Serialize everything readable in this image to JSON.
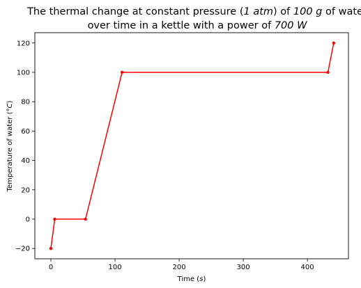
{
  "chart_data": {
    "type": "line",
    "title": {
      "line1_pre": "The thermal change at constant pressure (",
      "line1_math1": "1 atm",
      "line1_mid": ") of ",
      "line1_math2": "100 g",
      "line1_post": " of water",
      "line2_pre": "over time in a kettle with a power of ",
      "line2_math": "700 W"
    },
    "xlabel": {
      "pre": "Time (",
      "math": "s",
      "post": ")"
    },
    "ylabel": {
      "pre": "Temperature of water (",
      "math": "°C",
      "post": ")"
    },
    "xlim": [
      -25,
      464
    ],
    "ylim": [
      -27,
      127
    ],
    "xticks": [
      0,
      100,
      200,
      300,
      400
    ],
    "yticks": [
      -20,
      0,
      20,
      40,
      60,
      80,
      100,
      120
    ],
    "xtick_labels": [
      "0",
      "100",
      "200",
      "300",
      "400"
    ],
    "ytick_labels": [
      "−20",
      "0",
      "20",
      "40",
      "60",
      "80",
      "100",
      "120"
    ],
    "grid": false,
    "legend": "none",
    "series": [
      {
        "color": "#ff0000",
        "marker": "dot",
        "x": [
          0,
          6,
          54,
          111,
          432,
          441
        ],
        "y": [
          -20,
          0,
          0,
          100,
          100,
          120
        ]
      }
    ]
  }
}
